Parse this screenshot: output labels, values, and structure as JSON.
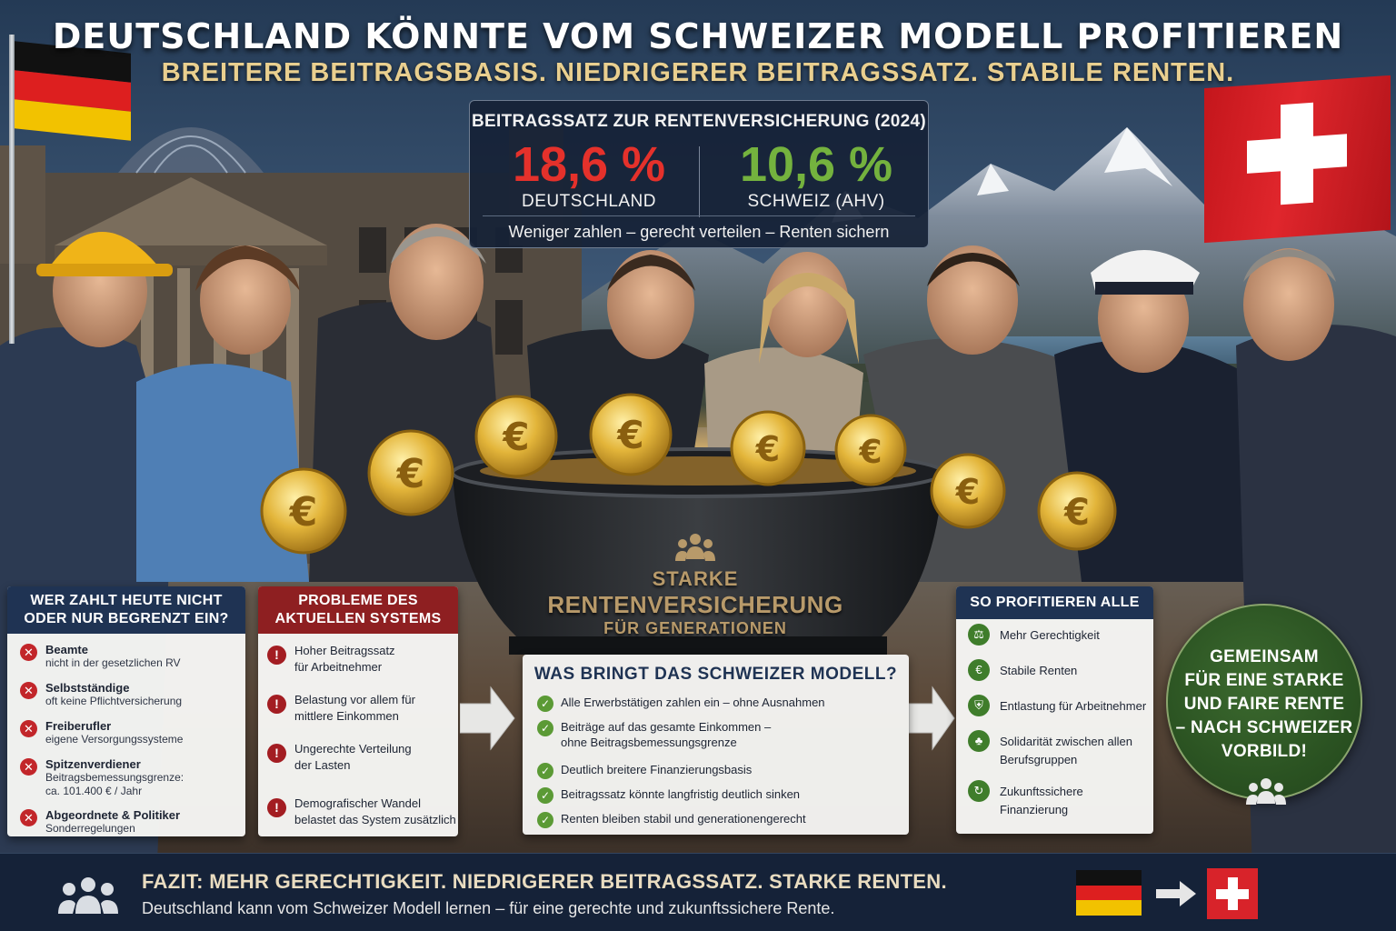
{
  "header": {
    "title": "DEUTSCHLAND KÖNNTE VOM SCHWEIZER MODELL PROFITIEREN",
    "subtitle": "BREITERE BEITRAGSBASIS. NIEDRIGERER BEITRAGSSATZ. STABILE RENTEN."
  },
  "rate_box": {
    "title": "BEITRAGSSATZ ZUR RENTENVERSICHERUNG (2024)",
    "germany": {
      "value": "18,6 %",
      "label": "DEUTSCHLAND",
      "color": "#e5312b"
    },
    "switzerland": {
      "value": "10,6 %",
      "label": "SCHWEIZ (AHV)",
      "color": "#74b23e"
    },
    "slogan": "Weniger zahlen – gerecht verteilen – Renten sichern"
  },
  "cauldron": {
    "line1": "STARKE",
    "line2": "RENTENVERSICHERUNG",
    "line3": "FÜR GENERATIONEN",
    "icon": "people-group-icon"
  },
  "panel_wer": {
    "title_line1": "WER ZAHLT HEUTE NICHT",
    "title_line2": "ODER NUR BEGRENZT EIN?",
    "icon": "x-circle-icon",
    "items": [
      {
        "main": "Beamte",
        "sub": "nicht in der gesetzlichen RV"
      },
      {
        "main": "Selbstständige",
        "sub": "oft keine Pflichtversicherung"
      },
      {
        "main": "Freiberufler",
        "sub": "eigene Versorgungssysteme"
      },
      {
        "main": "Spitzenverdiener",
        "sub": "Beitragsbemessungsgrenze:",
        "sub2": "ca. 101.400 € / Jahr"
      },
      {
        "main": "Abgeordnete & Politiker",
        "sub": "Sonderregelungen"
      }
    ]
  },
  "panel_prob": {
    "title_line1": "PROBLEME DES",
    "title_line2": "AKTUELLEN SYSTEMS",
    "icon": "exclamation-circle-icon",
    "items": [
      {
        "line1": "Hoher Beitragssatz",
        "line2": "für Arbeitnehmer"
      },
      {
        "line1": "Belastung vor allem für",
        "line2": "mittlere Einkommen"
      },
      {
        "line1": "Ungerechte Verteilung",
        "line2": "der Lasten"
      },
      {
        "line1": "Demografischer Wandel",
        "line2": "belastet das System zusätzlich"
      }
    ]
  },
  "panel_swiss": {
    "title": "WAS BRINGT DAS SCHWEIZER MODELL?",
    "icon": "check-circle-icon",
    "items": [
      {
        "line1": "Alle Erwerbstätigen zahlen ein – ohne Ausnahmen"
      },
      {
        "line1": "Beiträge auf das gesamte Einkommen –",
        "line2": "ohne Beitragsbemessungsgrenze"
      },
      {
        "line1": "Deutlich breitere Finanzierungsbasis"
      },
      {
        "line1": "Beitragssatz könnte langfristig deutlich sinken"
      },
      {
        "line1": "Renten bleiben stabil und generationengerecht"
      }
    ]
  },
  "panel_benefit": {
    "title": "SO PROFITIEREN ALLE",
    "items": [
      {
        "line1": "Mehr Gerechtigkeit",
        "icon": "people-tree-icon"
      },
      {
        "line1": "Stabile Renten",
        "icon": "piggy-bank-icon"
      },
      {
        "line1": "Entlastung für Arbeitnehmer",
        "icon": "person-shield-icon"
      },
      {
        "line1": "Solidarität zwischen allen",
        "line2": "Berufsgruppen",
        "icon": "group-icon"
      },
      {
        "line1": "Zukunftssichere Finanzierung",
        "icon": "money-cycle-icon"
      }
    ]
  },
  "badge": {
    "lines": [
      "GEMEINSAM",
      "FÜR EINE STARKE",
      "UND FAIRE RENTE",
      "– NACH SCHWEIZER",
      "VORBILD!"
    ],
    "icon": "people-group-icon"
  },
  "footer": {
    "title": "FAZIT: MEHR GERECHTIGKEIT. NIEDRIGERER BEITRAGSSATZ. STARKE RENTEN.",
    "text": "Deutschland kann vom Schweizer Modell lernen – für eine gerechte und zukunftssichere Rente.",
    "icon": "people-group-icon"
  },
  "colors": {
    "navy": "#1f3353",
    "red_header": "#8e1f21",
    "green": "#3f7d2b",
    "gold": "#e9cf8f",
    "germany_black": "#111111",
    "germany_red": "#dd1f1f",
    "germany_gold": "#f2c200",
    "swiss_red": "#d8232a"
  }
}
